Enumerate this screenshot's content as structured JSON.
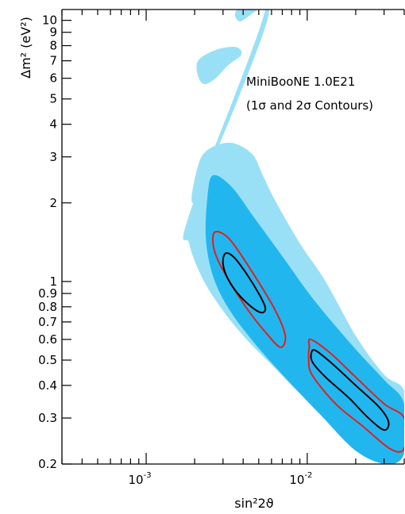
{
  "chart_data": {
    "type": "contour",
    "title": "",
    "xlabel": "sin²2ϑ",
    "ylabel": "Δm² (eV²)",
    "xscale": "log",
    "yscale": "log",
    "xlim": [
      0.0003,
      0.04
    ],
    "ylim": [
      0.2,
      11
    ],
    "x_ticks": [
      {
        "value": 0.001,
        "base": "10",
        "exp": "-3"
      },
      {
        "value": 0.01,
        "base": "10",
        "exp": "-2"
      }
    ],
    "y_ticks": [
      {
        "value": 0.2,
        "label": "0.2"
      },
      {
        "value": 0.3,
        "label": "0.3"
      },
      {
        "value": 0.4,
        "label": "0.4"
      },
      {
        "value": 0.5,
        "label": "0.5"
      },
      {
        "value": 0.6,
        "label": "0.6"
      },
      {
        "value": 0.7,
        "label": "0.7"
      },
      {
        "value": 0.8,
        "label": "0.8"
      },
      {
        "value": 0.9,
        "label": "0.9"
      },
      {
        "value": 1,
        "label": "1"
      },
      {
        "value": 2,
        "label": "2"
      },
      {
        "value": 3,
        "label": "3"
      },
      {
        "value": 4,
        "label": "4"
      },
      {
        "value": 5,
        "label": "5"
      },
      {
        "value": 6,
        "label": "6"
      },
      {
        "value": 7,
        "label": "7"
      },
      {
        "value": 8,
        "label": "8"
      },
      {
        "value": 9,
        "label": "9"
      },
      {
        "value": 10,
        "label": "10"
      }
    ],
    "annotation": {
      "line1": "MiniBooNE 1.0E21",
      "line2": "(1σ and 2σ Contours)"
    },
    "regions": [
      {
        "name": "outer band (light)",
        "color": "#99e0f7",
        "shape": [
          [
            0.0055,
            11
          ],
          [
            0.0037,
            11
          ],
          [
            0.0038,
            9.9
          ],
          [
            0.0057,
            10.2
          ],
          [
            0.00205,
            2.1
          ],
          [
            0.0022,
            3.0
          ],
          [
            0.0032,
            3.4
          ],
          [
            0.0045,
            3.1
          ],
          [
            0.0053,
            2.55
          ],
          [
            0.0063,
            2.05
          ],
          [
            0.009,
            1.4
          ],
          [
            0.013,
            1.0
          ],
          [
            0.02,
            0.62
          ],
          [
            0.03,
            0.44
          ],
          [
            0.04,
            0.38
          ],
          [
            0.04,
            0.255
          ],
          [
            0.033,
            0.21
          ],
          [
            0.02,
            0.24
          ],
          [
            0.01,
            0.35
          ],
          [
            0.006,
            0.48
          ],
          [
            0.004,
            0.62
          ],
          [
            0.0028,
            0.82
          ],
          [
            0.0022,
            1.05
          ],
          [
            0.00185,
            1.4
          ],
          [
            0.00185,
            1.8
          ]
        ]
      },
      {
        "name": "outer island (light)",
        "color": "#99e0f7",
        "shape": [
          [
            0.0021,
            6.1
          ],
          [
            0.0021,
            7.0
          ],
          [
            0.0027,
            7.7
          ],
          [
            0.0036,
            7.9
          ],
          [
            0.0039,
            7.4
          ],
          [
            0.0032,
            6.7
          ],
          [
            0.0027,
            6.0
          ],
          [
            0.0023,
            5.7
          ]
        ]
      },
      {
        "name": "inner band (medium)",
        "color": "#22b6ef",
        "shape": [
          [
            0.0024,
            2.1
          ],
          [
            0.0026,
            2.55
          ],
          [
            0.0034,
            2.3
          ],
          [
            0.0047,
            1.75
          ],
          [
            0.007,
            1.25
          ],
          [
            0.011,
            0.85
          ],
          [
            0.02,
            0.55
          ],
          [
            0.03,
            0.42
          ],
          [
            0.04,
            0.34
          ],
          [
            0.04,
            0.22
          ],
          [
            0.031,
            0.2
          ],
          [
            0.02,
            0.225
          ],
          [
            0.012,
            0.31
          ],
          [
            0.007,
            0.44
          ],
          [
            0.0045,
            0.6
          ],
          [
            0.0032,
            0.8
          ],
          [
            0.0026,
            1.05
          ],
          [
            0.00235,
            1.45
          ]
        ]
      }
    ],
    "contours": [
      {
        "name": "2σ (red)",
        "color": "#e02020",
        "points": [
          [
            0.0027,
            1.55
          ],
          [
            0.0033,
            1.45
          ],
          [
            0.0045,
            1.1
          ],
          [
            0.0063,
            0.78
          ],
          [
            0.0073,
            0.62
          ],
          [
            0.0068,
            0.56
          ],
          [
            0.0055,
            0.64
          ],
          [
            0.0044,
            0.76
          ],
          [
            0.0035,
            0.94
          ],
          [
            0.0028,
            1.2
          ],
          [
            0.0026,
            1.4
          ]
        ]
      },
      {
        "name": "2σ (red) lower",
        "color": "#e02020",
        "points": [
          [
            0.0103,
            0.56
          ],
          [
            0.0105,
            0.6
          ],
          [
            0.014,
            0.53
          ],
          [
            0.02,
            0.43
          ],
          [
            0.03,
            0.34
          ],
          [
            0.04,
            0.3
          ],
          [
            0.04,
            0.23
          ],
          [
            0.033,
            0.228
          ],
          [
            0.022,
            0.28
          ],
          [
            0.015,
            0.34
          ],
          [
            0.0107,
            0.44
          ],
          [
            0.0102,
            0.51
          ]
        ]
      },
      {
        "name": "1σ (black)",
        "color": "#000000",
        "points": [
          [
            0.0031,
            1.28
          ],
          [
            0.0035,
            1.24
          ],
          [
            0.0042,
            1.07
          ],
          [
            0.0051,
            0.88
          ],
          [
            0.0055,
            0.79
          ],
          [
            0.0052,
            0.76
          ],
          [
            0.0045,
            0.8
          ],
          [
            0.0037,
            0.9
          ],
          [
            0.0032,
            1.03
          ],
          [
            0.003,
            1.17
          ]
        ]
      },
      {
        "name": "1σ (black) lower",
        "color": "#000000",
        "points": [
          [
            0.0106,
            0.53
          ],
          [
            0.0112,
            0.545
          ],
          [
            0.014,
            0.49
          ],
          [
            0.02,
            0.4
          ],
          [
            0.028,
            0.33
          ],
          [
            0.032,
            0.29
          ],
          [
            0.03,
            0.27
          ],
          [
            0.024,
            0.3
          ],
          [
            0.018,
            0.36
          ],
          [
            0.013,
            0.43
          ],
          [
            0.0108,
            0.49
          ]
        ]
      }
    ]
  }
}
